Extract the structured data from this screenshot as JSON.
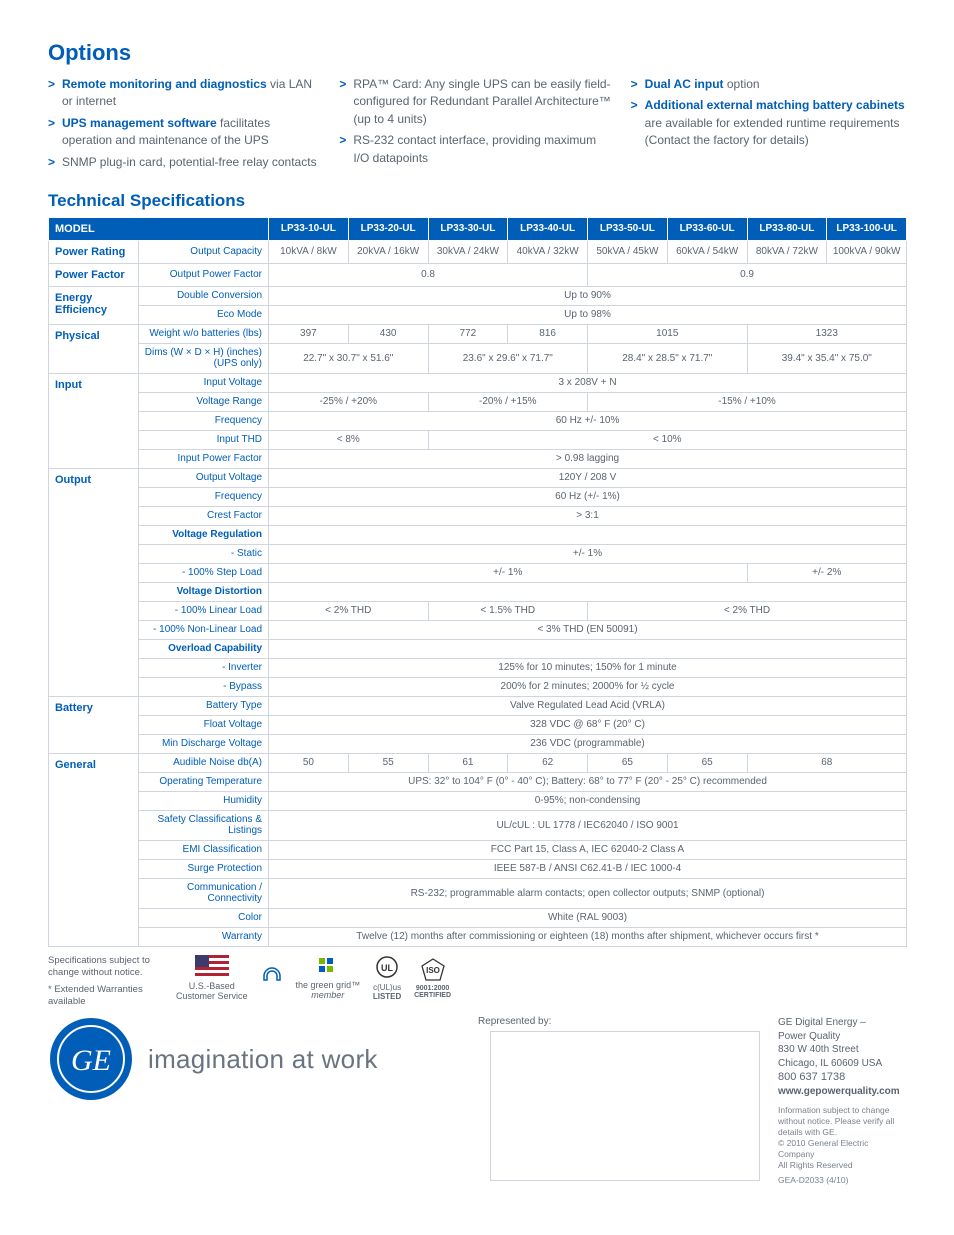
{
  "colors": {
    "brand": "#005eb8",
    "text": "#5a6470",
    "border": "#d0d6e0",
    "bg": "#ffffff"
  },
  "headings": {
    "options": "Options",
    "specs": "Technical Specifications"
  },
  "options": {
    "col1": [
      "<b>Remote monitoring and diagnostics</b> via LAN or internet",
      "<b>UPS management software</b> facilitates operation and maintenance of the UPS",
      "SNMP plug-in card, potential-free relay contacts"
    ],
    "col2": [
      "RPA™ Card: Any single UPS can be easily field-configured for Redundant Parallel Architecture™ (up to 4 units)",
      "RS-232 contact interface, providing maximum I/O datapoints"
    ],
    "col3": [
      "<b>Dual AC input</b> option",
      "<b>Additional external matching battery cabinets</b> are available for extended runtime requirements (Contact the factory for details)"
    ]
  },
  "models": [
    "LP33-10-UL",
    "LP33-20-UL",
    "LP33-30-UL",
    "LP33-40-UL",
    "LP33-50-UL",
    "LP33-60-UL",
    "LP33-80-UL",
    "LP33-100-UL"
  ],
  "model_header": "MODEL",
  "specs": [
    {
      "group": "Power Rating",
      "rows": [
        {
          "label": "Output Capacity",
          "cells": [
            "10kVA / 8kW",
            "20kVA / 16kW",
            "30kVA / 24kW",
            "40kVA / 32kW",
            "50kVA / 45kW",
            "60kVA / 54kW",
            "80kVA / 72kW",
            "100kVA / 90kW"
          ]
        }
      ]
    },
    {
      "group": "Power Factor",
      "rows": [
        {
          "label": "Output Power Factor",
          "spans": [
            {
              "v": "0.8",
              "c": 4
            },
            {
              "v": "0.9",
              "c": 4
            }
          ]
        }
      ]
    },
    {
      "group": "Energy Efficiency",
      "rows": [
        {
          "label": "Double Conversion",
          "spans": [
            {
              "v": "Up to 90%",
              "c": 8
            }
          ]
        },
        {
          "label": "Eco Mode",
          "spans": [
            {
              "v": "Up to 98%",
              "c": 8
            }
          ]
        }
      ]
    },
    {
      "group": "Physical",
      "rows": [
        {
          "label": "Weight w/o batteries (lbs)",
          "spans": [
            {
              "v": "397",
              "c": 1
            },
            {
              "v": "430",
              "c": 1
            },
            {
              "v": "772",
              "c": 1
            },
            {
              "v": "816",
              "c": 1
            },
            {
              "v": "1015",
              "c": 2
            },
            {
              "v": "1323",
              "c": 2
            }
          ]
        },
        {
          "label": "Dims (W × D × H) (inches) (UPS only)",
          "spans": [
            {
              "v": "22.7\" x 30.7\" x 51.6\"",
              "c": 2
            },
            {
              "v": "23.6\" x 29.6\" x 71.7\"",
              "c": 2
            },
            {
              "v": "28.4\" x 28.5\" x 71.7\"",
              "c": 2
            },
            {
              "v": "39.4\" x 35.4\" x 75.0\"",
              "c": 2
            }
          ]
        }
      ]
    },
    {
      "group": "Input",
      "rows": [
        {
          "label": "Input Voltage",
          "spans": [
            {
              "v": "3 x 208V + N",
              "c": 8
            }
          ]
        },
        {
          "label": "Voltage Range",
          "spans": [
            {
              "v": "-25% / +20%",
              "c": 2
            },
            {
              "v": "-20% / +15%",
              "c": 2
            },
            {
              "v": "-15% / +10%",
              "c": 4
            }
          ]
        },
        {
          "label": "Frequency",
          "spans": [
            {
              "v": "60 Hz +/- 10%",
              "c": 8
            }
          ]
        },
        {
          "label": "Input THD",
          "spans": [
            {
              "v": "< 8%",
              "c": 2
            },
            {
              "v": "< 10%",
              "c": 6
            }
          ]
        },
        {
          "label": "Input Power Factor",
          "spans": [
            {
              "v": "> 0.98 lagging",
              "c": 8
            }
          ]
        }
      ]
    },
    {
      "group": "Output",
      "rows": [
        {
          "label": "Output Voltage",
          "spans": [
            {
              "v": "120Y / 208 V",
              "c": 8
            }
          ]
        },
        {
          "label": "Frequency",
          "spans": [
            {
              "v": "60 Hz (+/- 1%)",
              "c": 8
            }
          ]
        },
        {
          "label": "Crest Factor",
          "spans": [
            {
              "v": "> 3:1",
              "c": 8
            }
          ]
        },
        {
          "label": "Voltage Regulation",
          "bold": true,
          "spans": [
            {
              "v": "",
              "c": 8
            }
          ]
        },
        {
          "label": "- Static",
          "spans": [
            {
              "v": "+/- 1%",
              "c": 8
            }
          ]
        },
        {
          "label": "- 100% Step Load",
          "spans": [
            {
              "v": "+/- 1%",
              "c": 6
            },
            {
              "v": "+/- 2%",
              "c": 2
            }
          ]
        },
        {
          "label": "Voltage Distortion",
          "bold": true,
          "spans": [
            {
              "v": "",
              "c": 8
            }
          ]
        },
        {
          "label": "- 100% Linear Load",
          "spans": [
            {
              "v": "< 2% THD",
              "c": 2
            },
            {
              "v": "< 1.5% THD",
              "c": 2
            },
            {
              "v": "< 2% THD",
              "c": 4
            }
          ]
        },
        {
          "label": "- 100% Non-Linear Load",
          "spans": [
            {
              "v": "< 3% THD (EN 50091)",
              "c": 8
            }
          ]
        },
        {
          "label": "Overload Capability",
          "bold": true,
          "spans": [
            {
              "v": "",
              "c": 8
            }
          ]
        },
        {
          "label": "- Inverter",
          "spans": [
            {
              "v": "125% for 10 minutes; 150% for 1 minute",
              "c": 8
            }
          ]
        },
        {
          "label": "- Bypass",
          "spans": [
            {
              "v": "200% for 2 minutes; 2000% for ½ cycle",
              "c": 8
            }
          ]
        }
      ]
    },
    {
      "group": "Battery",
      "rows": [
        {
          "label": "Battery Type",
          "spans": [
            {
              "v": "Valve Regulated Lead Acid (VRLA)",
              "c": 8
            }
          ]
        },
        {
          "label": "Float Voltage",
          "spans": [
            {
              "v": "328 VDC @ 68° F (20° C)",
              "c": 8
            }
          ]
        },
        {
          "label": "Min Discharge Voltage",
          "spans": [
            {
              "v": "236 VDC (programmable)",
              "c": 8
            }
          ]
        }
      ]
    },
    {
      "group": "General",
      "rows": [
        {
          "label": "Audible Noise db(A)",
          "spans": [
            {
              "v": "50",
              "c": 1
            },
            {
              "v": "55",
              "c": 1
            },
            {
              "v": "61",
              "c": 1
            },
            {
              "v": "62",
              "c": 1
            },
            {
              "v": "65",
              "c": 1
            },
            {
              "v": "65",
              "c": 1
            },
            {
              "v": "68",
              "c": 2
            }
          ]
        },
        {
          "label": "Operating Temperature",
          "spans": [
            {
              "v": "UPS: 32° to 104° F (0° - 40° C); Battery: 68° to 77° F (20° - 25° C) recommended",
              "c": 8
            }
          ]
        },
        {
          "label": "Humidity",
          "spans": [
            {
              "v": "0-95%; non-condensing",
              "c": 8
            }
          ]
        },
        {
          "label": "Safety Classifications & Listings",
          "spans": [
            {
              "v": "UL/cUL : UL 1778 / IEC62040 / ISO 9001",
              "c": 8
            }
          ]
        },
        {
          "label": "EMI Classification",
          "spans": [
            {
              "v": "FCC Part 15, Class A, IEC 62040-2 Class A",
              "c": 8
            }
          ]
        },
        {
          "label": "Surge Protection",
          "spans": [
            {
              "v": "IEEE 587-B / ANSI C62.41-B / IEC 1000-4",
              "c": 8
            }
          ]
        },
        {
          "label": "Communication / Connectivity",
          "spans": [
            {
              "v": "RS-232; programmable alarm contacts; open collector outputs; SNMP (optional)",
              "c": 8
            }
          ]
        },
        {
          "label": "Color",
          "spans": [
            {
              "v": "White (RAL 9003)",
              "c": 8
            }
          ]
        },
        {
          "label": "Warranty",
          "spans": [
            {
              "v": "Twelve (12) months after commissioning or eighteen (18) months after shipment, whichever occurs first *",
              "c": 8
            }
          ]
        }
      ]
    }
  ],
  "footnotes": [
    "Specifications subject to change without notice.",
    "* Extended Warranties available"
  ],
  "certs": {
    "us_based": "U.S.-Based\nCustomer Service",
    "green_grid": "the green grid™",
    "green_grid_sub": "member",
    "ul": "c(UL)us",
    "ul_sub": "LISTED",
    "iso": "ISO",
    "iso_sub": "9001:2000\nCERTIFIED"
  },
  "rep_label": "Represented by:",
  "tagline": "imagination at work",
  "addr": {
    "l1": "GE Digital Energy –",
    "l2": "Power Quality",
    "l3": "830 W 40th Street",
    "l4": "Chicago, IL 60609 USA",
    "phone": "800 637 1738",
    "url": "www.gepowerquality.com"
  },
  "legal": {
    "l1": "Information subject to change without notice. Please verify all details with GE.",
    "l2": "© 2010 General Electric Company",
    "l3": "All Rights Reserved",
    "l4": "GEA-D2033  (4/10)"
  }
}
